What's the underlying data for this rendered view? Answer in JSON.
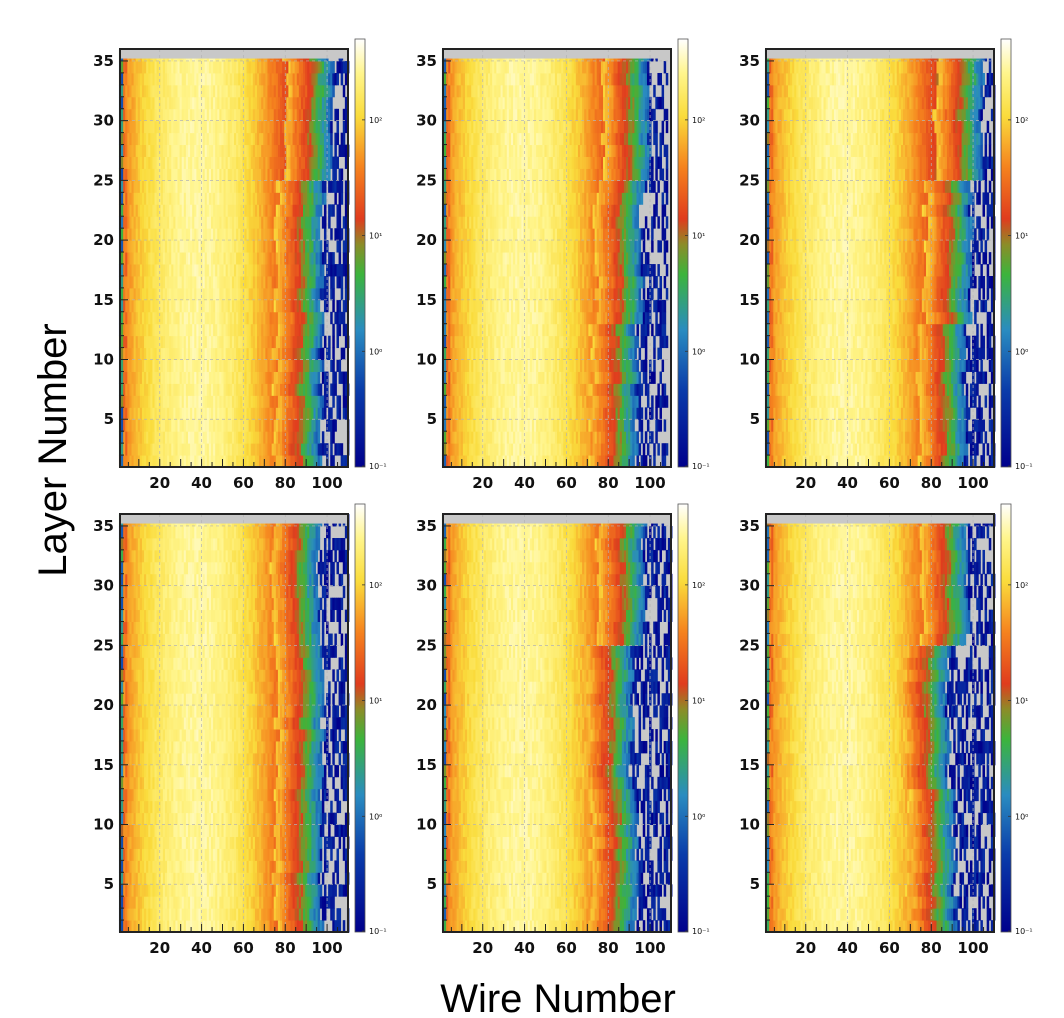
{
  "ylabel": "Layer Number",
  "xlabel": "Wire Number",
  "chart_data": {
    "type": "heatmap",
    "xlabel": "Wire Number",
    "ylabel": "Layer Number",
    "xlim": [
      1,
      110
    ],
    "ylim": [
      1,
      36
    ],
    "x_ticks": [
      "20",
      "40",
      "60",
      "80",
      "100"
    ],
    "y_ticks": [
      "5",
      "10",
      "15",
      "20",
      "25",
      "30",
      "35"
    ],
    "colorbar": {
      "scale": "log",
      "range": [
        0.1,
        500
      ],
      "ticks": [
        "10⁻¹",
        "10⁰",
        "10¹",
        "10²"
      ]
    },
    "colors": {
      "missing": "#c8c8c8",
      "low": "#00008c",
      "mid": "#3cb43c",
      "high": "#ffffff"
    },
    "panels": [
      {
        "name": "panel-1",
        "edge_by_layer_block": [
          {
            "layers": [
              1,
              12
            ],
            "edge_wire": 93
          },
          {
            "layers": [
              13,
              24
            ],
            "edge_wire": 94
          },
          {
            "layers": [
              25,
              35
            ],
            "edge_wire": 98
          }
        ],
        "max_wire": 110
      },
      {
        "name": "panel-2",
        "edge_by_layer_block": [
          {
            "layers": [
              1,
              12
            ],
            "edge_wire": 90
          },
          {
            "layers": [
              13,
              24
            ],
            "edge_wire": 92
          },
          {
            "layers": [
              25,
              35
            ],
            "edge_wire": 95
          }
        ],
        "max_wire": 108
      },
      {
        "name": "panel-3",
        "edge_by_layer_block": [
          {
            "layers": [
              1,
              12
            ],
            "edge_wire": 92
          },
          {
            "layers": [
              13,
              24
            ],
            "edge_wire": 95
          },
          {
            "layers": [
              25,
              35
            ],
            "edge_wire": 100
          }
        ],
        "max_wire": 110
      },
      {
        "name": "panel-4",
        "edge_by_layer_block": [
          {
            "layers": [
              1,
              12
            ],
            "edge_wire": 93
          },
          {
            "layers": [
              13,
              24
            ],
            "edge_wire": 94
          },
          {
            "layers": [
              25,
              35
            ],
            "edge_wire": 92
          }
        ],
        "max_wire": 110
      },
      {
        "name": "panel-5",
        "edge_by_layer_block": [
          {
            "layers": [
              1,
              12
            ],
            "edge_wire": 90
          },
          {
            "layers": [
              13,
              24
            ],
            "edge_wire": 87
          },
          {
            "layers": [
              25,
              35
            ],
            "edge_wire": 93
          }
        ],
        "max_wire": 110
      },
      {
        "name": "panel-6",
        "edge_by_layer_block": [
          {
            "layers": [
              1,
              12
            ],
            "edge_wire": 87
          },
          {
            "layers": [
              13,
              24
            ],
            "edge_wire": 84
          },
          {
            "layers": [
              25,
              35
            ],
            "edge_wire": 93
          }
        ],
        "max_wire": 110
      }
    ]
  }
}
